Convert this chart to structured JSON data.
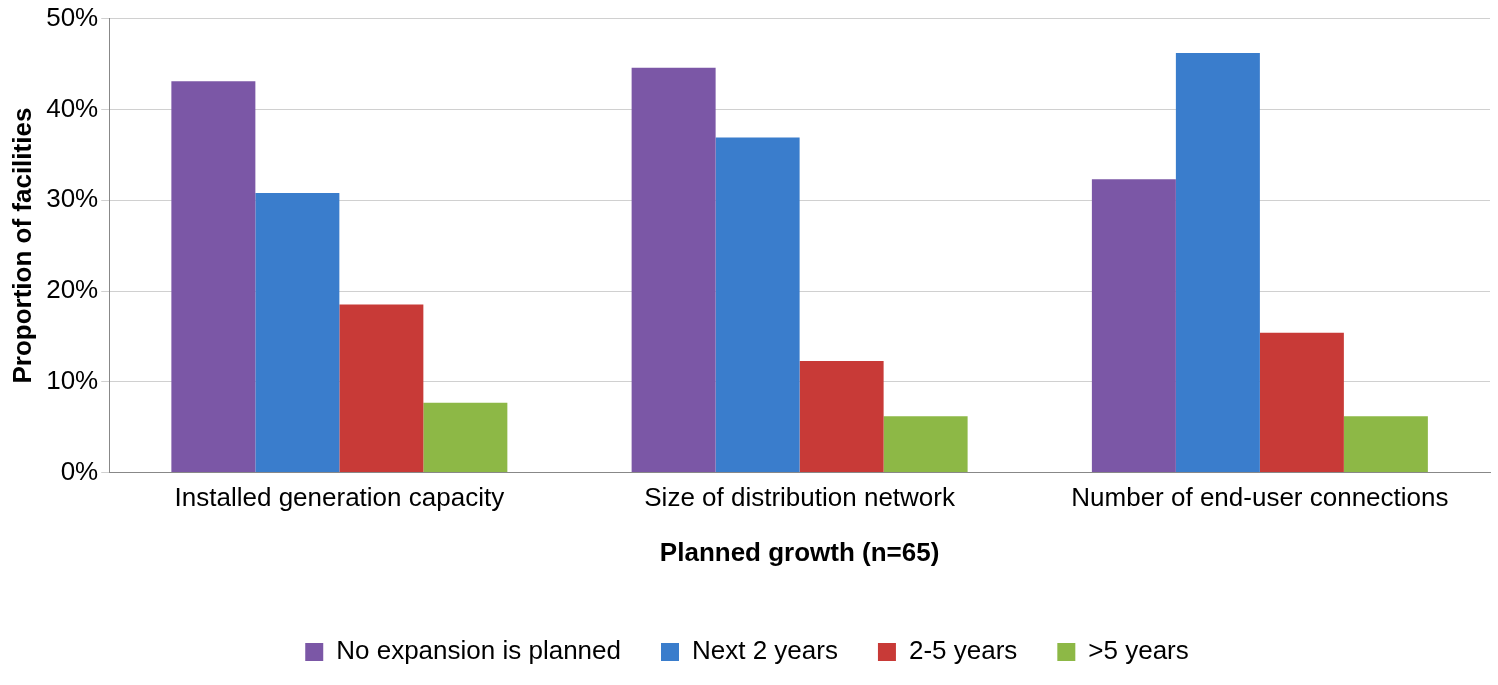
{
  "chart_data": {
    "type": "bar",
    "xlabel": "Planned growth (n=65)",
    "ylabel": "Proportion of facilities",
    "categories": [
      "Installed generation capacity",
      "Size of distribution network",
      "Number of end-user connections"
    ],
    "series": [
      {
        "name": "No expansion is planned",
        "color": "#7b57a6",
        "values": [
          43.1,
          44.6,
          32.3
        ]
      },
      {
        "name": "Next 2 years",
        "color": "#3a7dcc",
        "values": [
          30.8,
          36.9,
          46.2
        ]
      },
      {
        "name": "2-5 years",
        "color": "#c83a37",
        "values": [
          18.5,
          12.3,
          15.4
        ]
      },
      {
        "name": ">5 years",
        "color": "#8db846",
        "values": [
          7.7,
          6.2,
          6.2
        ]
      }
    ],
    "ylim": [
      0,
      50
    ],
    "yticks": [
      {
        "value": 0,
        "label": "0%"
      },
      {
        "value": 10,
        "label": "10%"
      },
      {
        "value": 20,
        "label": "20%"
      },
      {
        "value": 30,
        "label": "30%"
      },
      {
        "value": 40,
        "label": "40%"
      },
      {
        "value": 50,
        "label": "50%"
      }
    ],
    "grid": "y",
    "legend": "bottom"
  }
}
